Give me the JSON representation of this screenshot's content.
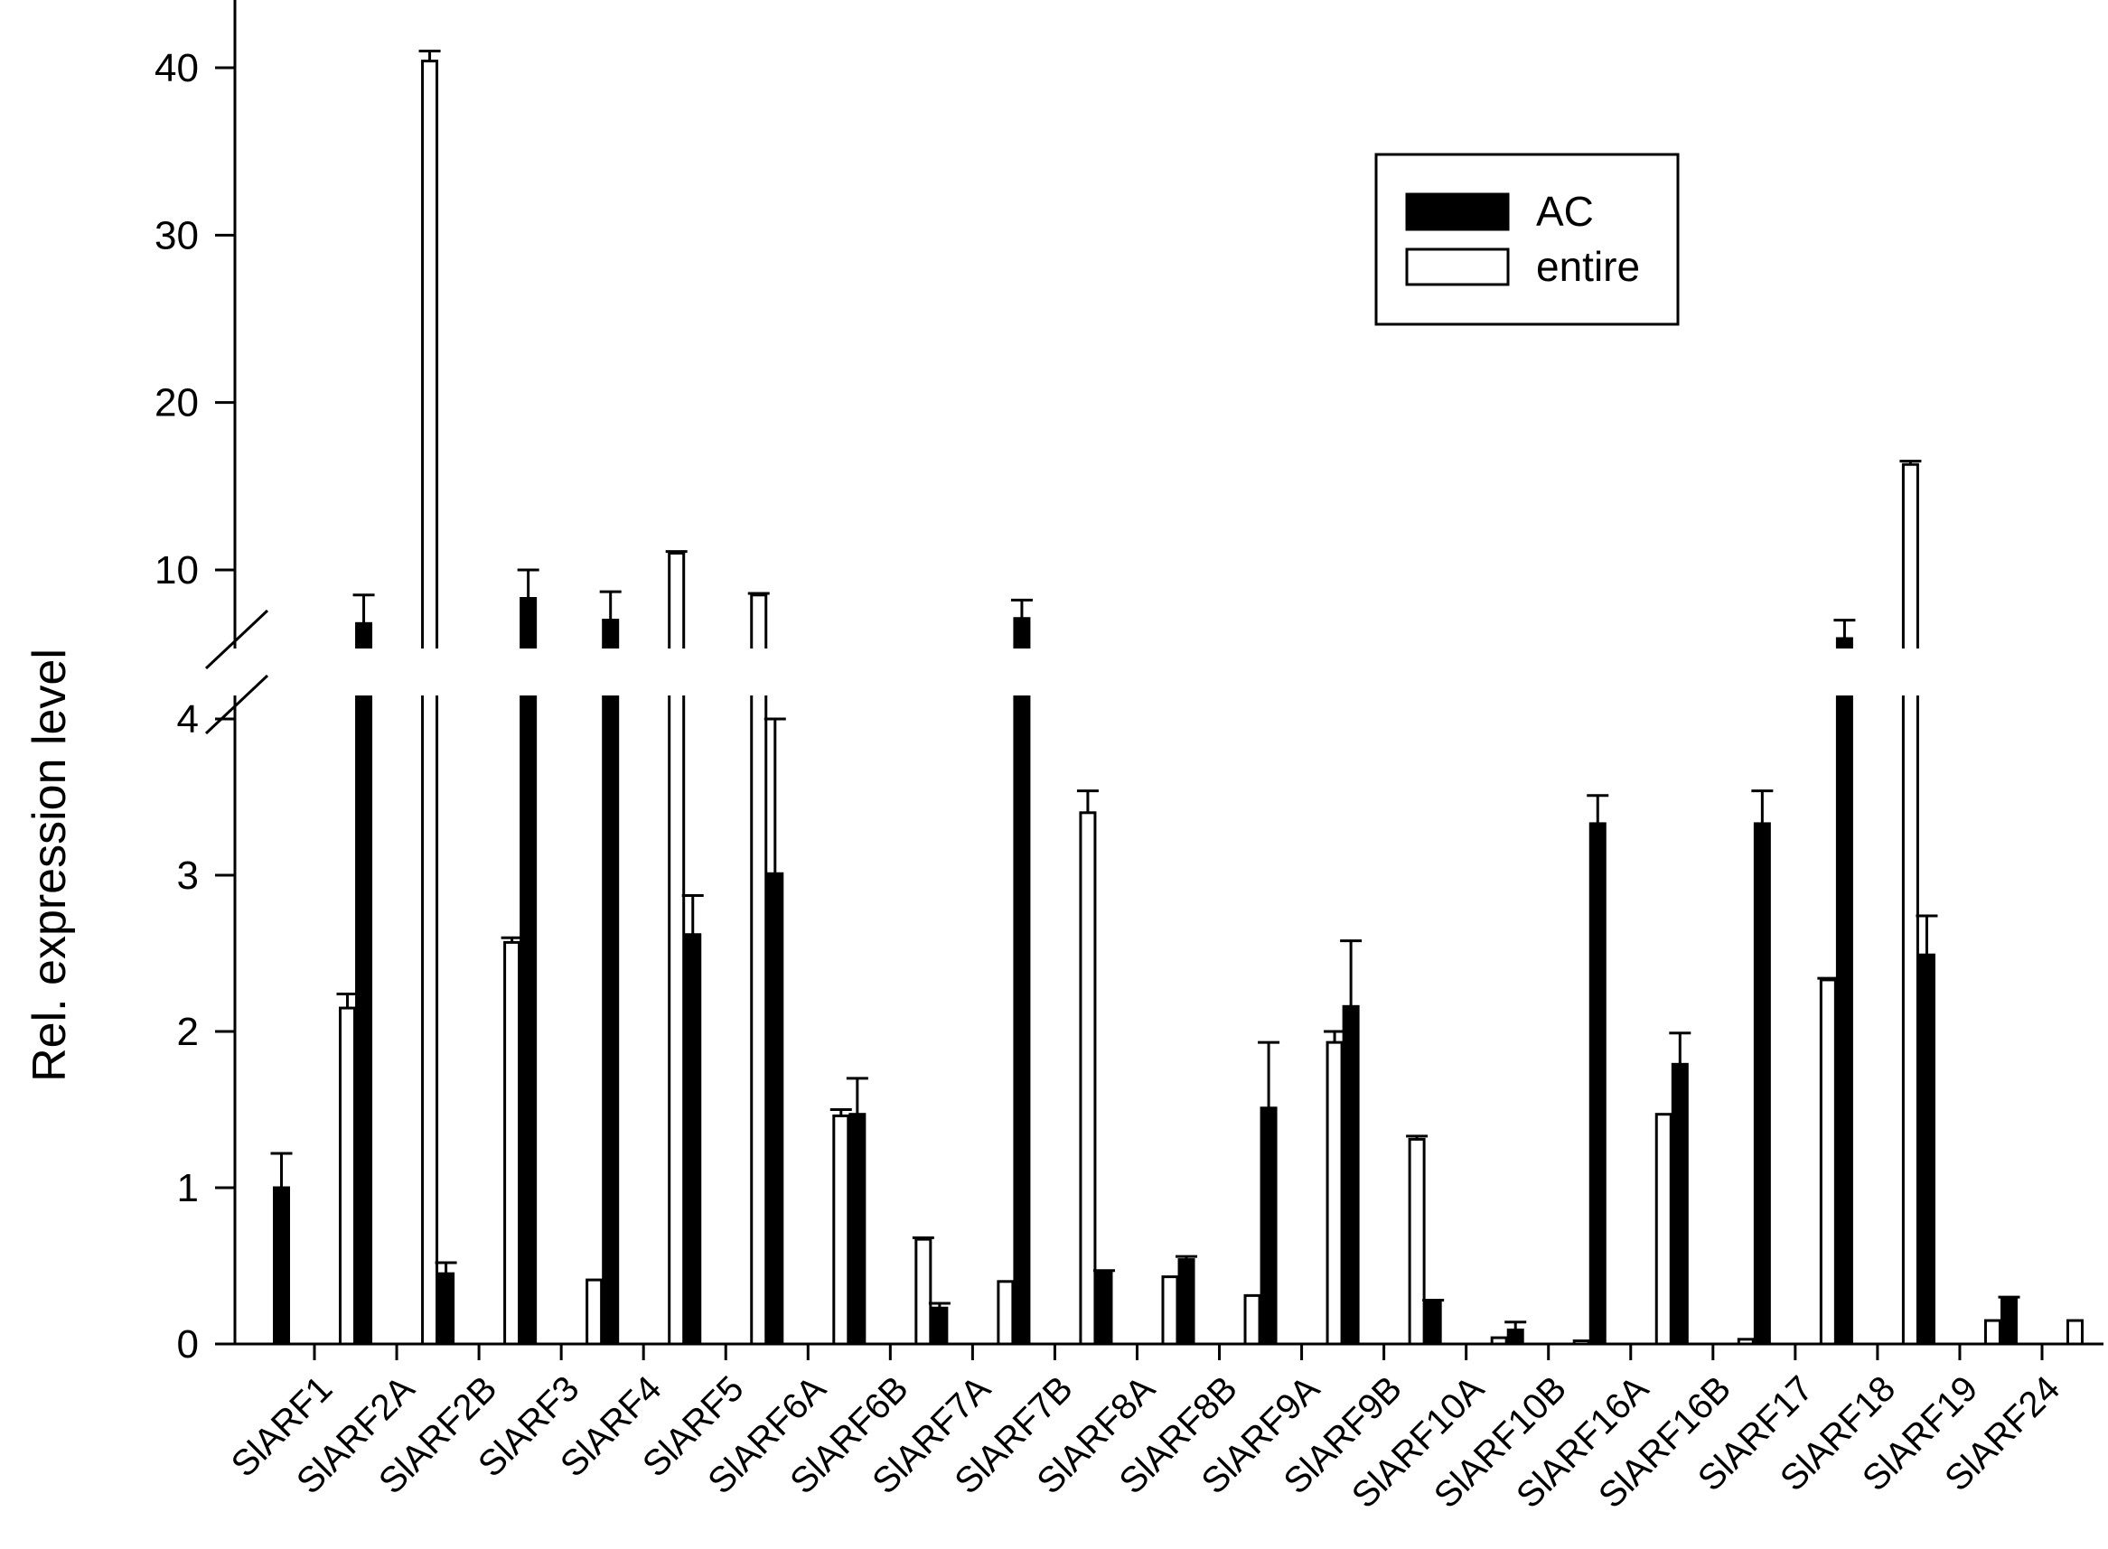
{
  "chart_data": {
    "type": "bar",
    "title": "",
    "xlabel": "",
    "ylabel": "Rel. expression level",
    "broken_axis": true,
    "lower_segment": {
      "range": [
        0,
        4
      ],
      "ticks": [
        0,
        1,
        2,
        3,
        4
      ]
    },
    "upper_segment": {
      "range": [
        5,
        44
      ],
      "ticks": [
        10,
        20,
        30,
        40
      ]
    },
    "legend": {
      "position": "top-right",
      "entries": [
        "AC",
        "entire"
      ]
    },
    "grid": false,
    "categories": [
      "SlARF1",
      "SlARF2A",
      "SlARF2B",
      "SlARF3",
      "SlARF4",
      "SlARF5",
      "SlARF6A",
      "SlARF6B",
      "SlARF7A",
      "SlARF7B",
      "SlARF8A",
      "SlARF8B",
      "SlARF9A",
      "SlARF9B",
      "SlARF10A",
      "SlARF10B",
      "SlARF16A",
      "SlARF16B",
      "SlARF17",
      "SlARF18",
      "SlARF19",
      "SlARF24"
    ],
    "series": [
      {
        "name": "AC",
        "color": "#000000",
        "values": [
          1.0,
          6.8,
          0.45,
          8.3,
          7.0,
          2.62,
          3.01,
          1.47,
          0.23,
          7.1,
          0.46,
          0.54,
          1.51,
          2.16,
          0.27,
          0.09,
          3.33,
          1.79,
          3.33,
          5.9,
          2.49,
          0.29
        ],
        "errors": [
          0.22,
          1.7,
          0.07,
          1.7,
          1.7,
          0.25,
          1.1,
          0.23,
          0.03,
          1.1,
          0.01,
          0.02,
          0.42,
          0.42,
          0.01,
          0.05,
          0.18,
          0.2,
          0.21,
          1.1,
          0.25,
          0.01
        ]
      },
      {
        "name": "entire",
        "color": "#ffffff",
        "values": [
          2.15,
          40.4,
          2.57,
          0.41,
          11.0,
          8.5,
          1.46,
          0.67,
          0.4,
          3.4,
          0.43,
          0.31,
          1.93,
          1.31,
          0.04,
          0.02,
          1.47,
          0.03,
          2.33,
          16.3,
          0.15,
          0.15
        ],
        "errors": [
          0.09,
          0.6,
          0.03,
          0.0,
          0.1,
          0.1,
          0.04,
          0.01,
          0.0,
          0.14,
          0.0,
          0.0,
          0.07,
          0.02,
          0.0,
          0.0,
          0.0,
          0.0,
          0.01,
          0.2,
          0.0,
          0.0
        ]
      }
    ]
  }
}
